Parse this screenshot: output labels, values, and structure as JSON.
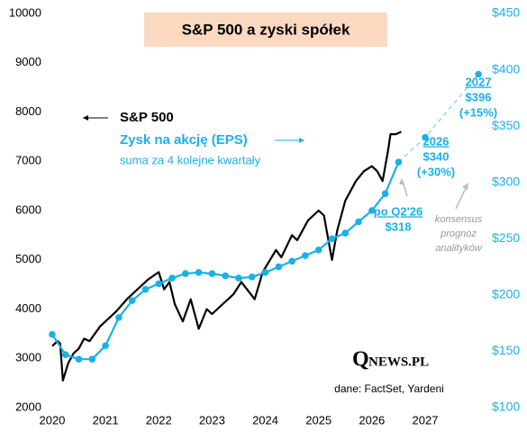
{
  "chart_data": {
    "type": "line",
    "title": "S&P 500 a zyski spółek",
    "legend_note": "suma za 4 kolejne kwartały",
    "annotations": {
      "actual": "po Q2'26",
      "y2026": "2026",
      "g2026": "(+30%)",
      "y2027": "2027",
      "g2027": "(+15%)",
      "consensus": [
        "konsensus",
        "prognoz",
        "analityków"
      ]
    },
    "logo": {
      "first": "Q",
      "rest": "NEWS.PL"
    },
    "source": "dane: FactSet, Yardeni",
    "xlim": [
      2019.95,
      2028.15
    ],
    "xticks": [
      2020,
      2021,
      2022,
      2023,
      2024,
      2025,
      2026,
      2027
    ],
    "ylim": [
      2000,
      10000
    ],
    "yticks": [
      2000,
      3000,
      4000,
      5000,
      6000,
      7000,
      8000,
      9000,
      10000
    ],
    "y2lim": [
      100,
      450
    ],
    "y2ticks": [
      {
        "value": 100,
        "label": "$100"
      },
      {
        "value": 150,
        "label": "$150"
      },
      {
        "value": 200,
        "label": "$200"
      },
      {
        "value": 250,
        "label": "$250"
      },
      {
        "value": 300,
        "label": "$300"
      },
      {
        "value": 350,
        "label": "$350"
      },
      {
        "value": 400,
        "label": "$400"
      },
      {
        "value": 450,
        "label": "$450"
      }
    ],
    "grid": false,
    "series": [
      {
        "name": "S&P 500",
        "color": "#000000",
        "x": [
          2020.0,
          2020.1,
          2020.15,
          2020.2,
          2020.3,
          2020.4,
          2020.5,
          2020.6,
          2020.7,
          2020.8,
          2020.9,
          2021.0,
          2021.2,
          2021.4,
          2021.6,
          2021.8,
          2022.0,
          2022.1,
          2022.2,
          2022.3,
          2022.45,
          2022.6,
          2022.75,
          2022.9,
          2023.0,
          2023.2,
          2023.4,
          2023.55,
          2023.8,
          2023.95,
          2024.2,
          2024.3,
          2024.5,
          2024.6,
          2024.8,
          2025.0,
          2025.1,
          2025.25,
          2025.35,
          2025.5,
          2025.7,
          2025.85,
          2026.0,
          2026.1,
          2026.2,
          2026.3,
          2026.35,
          2026.45,
          2026.55
        ],
        "values": [
          3250,
          3350,
          3300,
          2550,
          2900,
          3100,
          3200,
          3400,
          3350,
          3500,
          3650,
          3750,
          3950,
          4200,
          4400,
          4600,
          4750,
          4400,
          4550,
          4100,
          3750,
          4200,
          3600,
          4000,
          3900,
          4100,
          4300,
          4550,
          4200,
          4750,
          5200,
          5050,
          5500,
          5400,
          5800,
          6000,
          5900,
          5000,
          5600,
          6200,
          6600,
          6800,
          6900,
          6800,
          6600,
          7200,
          7550,
          7550,
          7600
        ]
      },
      {
        "name": "Zysk na akcję (EPS)",
        "color": "#1ab0e8",
        "axis": "y2",
        "x": [
          2020.0,
          2020.25,
          2020.5,
          2020.75,
          2021.0,
          2021.25,
          2021.5,
          2021.75,
          2022.0,
          2022.25,
          2022.5,
          2022.75,
          2023.0,
          2023.25,
          2023.5,
          2023.75,
          2024.0,
          2024.25,
          2024.5,
          2024.75,
          2025.0,
          2025.25,
          2025.5,
          2025.75,
          2026.0,
          2026.25,
          2026.5,
          2027.0,
          2028.0
        ],
        "values": [
          165,
          147,
          143,
          143,
          155,
          180,
          195,
          205,
          210,
          215,
          219,
          220,
          219,
          217,
          215,
          216,
          220,
          225,
          230,
          235,
          240,
          250,
          255,
          265,
          275,
          290,
          318,
          340,
          396
        ],
        "value_labels": [
          null,
          null,
          null,
          null,
          null,
          null,
          null,
          null,
          null,
          null,
          null,
          null,
          null,
          null,
          null,
          null,
          null,
          null,
          null,
          null,
          null,
          null,
          null,
          null,
          null,
          null,
          "$318",
          "$340",
          "$396"
        ],
        "forecast": [
          false,
          false,
          false,
          false,
          false,
          false,
          false,
          false,
          false,
          false,
          false,
          false,
          false,
          false,
          false,
          false,
          false,
          false,
          false,
          false,
          false,
          false,
          false,
          false,
          false,
          false,
          false,
          true,
          true
        ]
      }
    ]
  }
}
